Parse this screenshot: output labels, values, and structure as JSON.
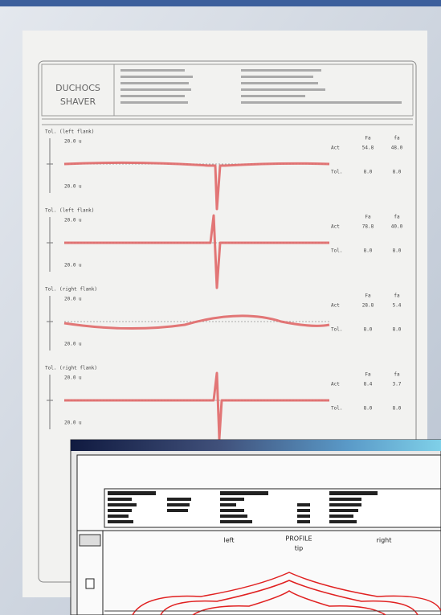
{
  "printout": {
    "header": {
      "brand": "DUCHOCS",
      "product": "SHAVER"
    },
    "panels": [
      {
        "title": "Tol. (left flank)",
        "scale_top": "20.0 u",
        "scale_bottom": "20.0 u",
        "act": "Act",
        "tol": "Tol.",
        "cols": [
          "Fa",
          "fa"
        ],
        "act_values": [
          "54.8",
          "48.0"
        ],
        "tol_values": [
          "8.0",
          "8.0"
        ]
      },
      {
        "title": "Tol. (left flank)",
        "scale_top": "20.0 u",
        "scale_bottom": "20.0 u",
        "act": "Act",
        "tol": "Tol.",
        "cols": [
          "Fa",
          "fa"
        ],
        "act_values": [
          "78.8",
          "40.0"
        ],
        "tol_values": [
          "8.0",
          "8.0"
        ]
      },
      {
        "title": "Tol. (right flank)",
        "scale_top": "20.0 u",
        "scale_bottom": "20.0 u",
        "act": "Act",
        "tol": "Tol.",
        "cols": [
          "Fa",
          "fa"
        ],
        "act_values": [
          "28.8",
          "5.4"
        ],
        "tol_values": [
          "8.0",
          "8.0"
        ]
      },
      {
        "title": "Tol. (right flank)",
        "scale_top": "20.0 u",
        "scale_bottom": "20.0 u",
        "act": "Act",
        "tol": "Tol.",
        "cols": [
          "Fa",
          "fa"
        ],
        "act_values": [
          "8.4",
          "3.7"
        ],
        "tol_values": [
          "8.0",
          "8.0"
        ]
      }
    ]
  },
  "window": {
    "left": "left",
    "title": "PROFILE",
    "tip": "tip",
    "right": "right"
  }
}
